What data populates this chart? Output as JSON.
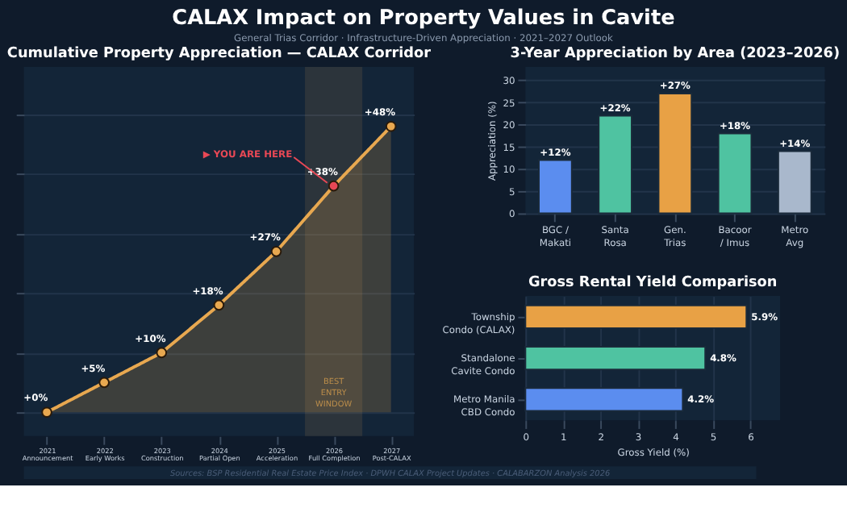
{
  "chart_data": [
    {
      "type": "other",
      "title": "CALAX Impact on Property Values in Cavite",
      "subtitle": "General Trias Corridor  ·  Infrastructure-Driven Appreciation  ·  2021–2027 Outlook",
      "annotations": [
        "Sources: BSP Residential Real Estate Price Index · DPWH CALAX Project Updates · CALABARZON Analysis 2026"
      ]
    },
    {
      "type": "line",
      "title": "Cumulative Property Appreciation — CALAX Corridor",
      "x": [
        2021,
        2022,
        2023,
        2024,
        2025,
        2026,
        2027
      ],
      "xlim": [
        2020.6,
        2027.4
      ],
      "xticks": [
        {
          "value": 2021,
          "label": "2021\nAnnouncement"
        },
        {
          "value": 2022,
          "label": "2022\nEarly Works"
        },
        {
          "value": 2023,
          "label": "2023\nConstruction"
        },
        {
          "value": 2024,
          "label": "2024\nPartial Open"
        },
        {
          "value": 2025,
          "label": "2025\nAcceleration"
        },
        {
          "value": 2026,
          "label": "2026\nFull Completion"
        },
        {
          "value": 2027,
          "label": "2027\nPost-CALAX"
        }
      ],
      "ylim": [
        -4,
        58
      ],
      "yticks": [
        {
          "value": 0,
          "label": null
        },
        {
          "value": 10,
          "label": null
        },
        {
          "value": 20,
          "label": null
        },
        {
          "value": 30,
          "label": null
        },
        {
          "value": 40,
          "label": null
        },
        {
          "value": 50,
          "label": null
        }
      ],
      "tick_labels": "x",
      "grid": "y",
      "marker": "circle",
      "line_style": "solid",
      "series": [
        {
          "type": "area",
          "color": "#e8a850",
          "values": [
            0,
            5,
            10,
            18,
            27,
            38,
            48
          ],
          "colors": [
            "#e8a850",
            "#e8a850",
            "#e8a850",
            "#e8a850",
            "#e8a850",
            "#e84855",
            "#e8a850"
          ],
          "value_labels": [
            "+0%",
            "+5%",
            "+10%",
            "+18%",
            "+27%",
            "+38%",
            "+48%"
          ]
        }
      ],
      "bands": [
        {
          "axis": "x",
          "from": 2025.5,
          "to": 2026.5,
          "label": "BEST ENTRY WINDOW",
          "color": "#e8a850"
        }
      ],
      "annotations": [
        {
          "text": "▶ YOU ARE HERE",
          "x": 2026,
          "y": 38
        }
      ]
    },
    {
      "type": "bar",
      "title": "3-Year Appreciation by Area (2023–2026)",
      "categories": [
        "BGC /\nMakati",
        "Santa\nRosa",
        "Gen.\nTrias",
        "Bacoor\n/ Imus",
        "Metro\nAvg"
      ],
      "values": [
        12,
        22,
        27,
        18,
        14
      ],
      "colors": [
        "#5b8def",
        "#4fc3a1",
        "#e8a145",
        "#4fc3a1",
        "#a9b8cc"
      ],
      "value_labels": [
        "+12%",
        "+22%",
        "+27%",
        "+18%",
        "+14%"
      ],
      "ylabel": "Appreciation (%)",
      "ylim": [
        0,
        33
      ],
      "yticks": [
        0,
        5,
        10,
        15,
        20,
        25,
        30
      ],
      "grid": "y"
    },
    {
      "type": "bar",
      "orientation": "horizontal",
      "title": "Gross Rental Yield Comparison",
      "categories": [
        "Township\nCondo (CALAX)",
        "Standalone\nCavite Condo",
        "Metro Manila\nCBD Condo"
      ],
      "values": [
        5.9,
        4.8,
        4.2
      ],
      "colors": [
        "#e8a145",
        "#4fc3a1",
        "#5b8def"
      ],
      "value_labels": [
        "5.9%",
        "4.8%",
        "4.2%"
      ],
      "xlabel": "Gross Yield (%)",
      "xlim": [
        0,
        6.8
      ],
      "xticks": [
        0,
        1,
        2,
        3,
        4,
        5,
        6
      ],
      "grid": "x"
    }
  ]
}
